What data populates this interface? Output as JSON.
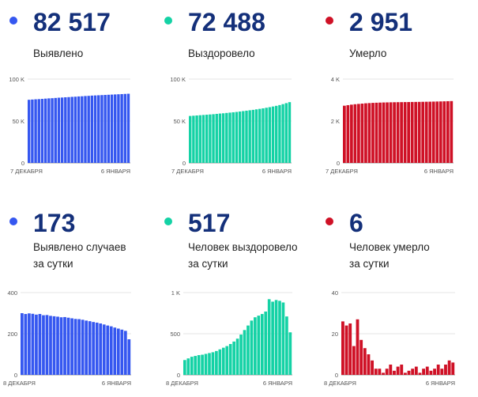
{
  "colors": {
    "blue": "#3557f0",
    "green": "#14d2a5",
    "red": "#cf1126",
    "number": "#14307a"
  },
  "panels": [
    {
      "number": "82 517",
      "label_lines": [
        "Выявлено"
      ],
      "color": "#3557f0"
    },
    {
      "number": "72 488",
      "label_lines": [
        "Выздоровело"
      ],
      "color": "#14d2a5"
    },
    {
      "number": "2 951",
      "label_lines": [
        "Умерло"
      ],
      "color": "#cf1126"
    },
    {
      "number": "173",
      "label_lines": [
        "Выявлено случаев",
        "за сутки"
      ],
      "color": "#3557f0"
    },
    {
      "number": "517",
      "label_lines": [
        "Человек выздоровело",
        "за сутки"
      ],
      "color": "#14d2a5"
    },
    {
      "number": "6",
      "label_lines": [
        "Человек умерло",
        "за сутки"
      ],
      "color": "#cf1126"
    }
  ],
  "chart_data": [
    {
      "type": "bar",
      "ylim": [
        0,
        100000
      ],
      "y_ticks": [
        0,
        50000,
        100000
      ],
      "y_tick_labels": [
        "0",
        "50 K",
        "100 K"
      ],
      "x_labels": [
        "7 ДЕКАБРЯ",
        "6 ЯНВАРЯ"
      ],
      "series": [
        {
          "values": [
            75300,
            75600,
            75900,
            76100,
            76400,
            76700,
            77000,
            77200,
            77500,
            77800,
            78000,
            78300,
            78500,
            78800,
            79000,
            79300,
            79500,
            79800,
            80000,
            80300,
            80500,
            80700,
            80900,
            81100,
            81300,
            81500,
            81700,
            81900,
            82100,
            82300,
            82517
          ]
        }
      ]
    },
    {
      "type": "bar",
      "ylim": [
        0,
        100000
      ],
      "y_ticks": [
        0,
        50000,
        100000
      ],
      "y_tick_labels": [
        "0",
        "50 K",
        "100 K"
      ],
      "x_labels": [
        "7 ДЕКАБРЯ",
        "6 ЯНВАРЯ"
      ],
      "series": [
        {
          "values": [
            56000,
            56300,
            56600,
            56900,
            57200,
            57500,
            57800,
            58100,
            58500,
            58900,
            59200,
            59600,
            60000,
            60400,
            60800,
            61300,
            61800,
            62300,
            62800,
            63300,
            63900,
            64500,
            65100,
            65800,
            66500,
            67300,
            68100,
            69000,
            70100,
            71300,
            72488
          ]
        }
      ]
    },
    {
      "type": "bar",
      "ylim": [
        0,
        4000
      ],
      "y_ticks": [
        0,
        2000,
        4000
      ],
      "y_tick_labels": [
        "0",
        "2 K",
        "4 K"
      ],
      "x_labels": [
        "7 ДЕКАБРЯ",
        "6 ЯНВАРЯ"
      ],
      "series": [
        {
          "values": [
            2730,
            2755,
            2780,
            2800,
            2815,
            2830,
            2845,
            2855,
            2865,
            2872,
            2878,
            2884,
            2888,
            2892,
            2895,
            2898,
            2900,
            2903,
            2905,
            2908,
            2910,
            2913,
            2916,
            2919,
            2922,
            2926,
            2930,
            2934,
            2939,
            2945,
            2951
          ]
        }
      ]
    },
    {
      "type": "bar",
      "ylim": [
        0,
        400
      ],
      "y_ticks": [
        0,
        200,
        400
      ],
      "y_tick_labels": [
        "0",
        "200",
        "400"
      ],
      "x_labels": [
        "8 ДЕКАБРЯ",
        "6 ЯНВАРЯ"
      ],
      "series": [
        {
          "values": [
            300,
            296,
            299,
            297,
            293,
            296,
            290,
            291,
            287,
            285,
            283,
            280,
            281,
            278,
            275,
            272,
            271,
            268,
            264,
            261,
            257,
            254,
            250,
            245,
            240,
            236,
            230,
            225,
            220,
            214,
            173
          ]
        }
      ]
    },
    {
      "type": "bar",
      "ylim": [
        0,
        1000
      ],
      "y_ticks": [
        0,
        500,
        1000
      ],
      "y_tick_labels": [
        "0",
        "500",
        "1 K"
      ],
      "x_labels": [
        "8 ДЕКАБРЯ",
        "6 ЯНВАРЯ"
      ],
      "series": [
        {
          "values": [
            180,
            200,
            220,
            230,
            240,
            245,
            255,
            265,
            275,
            290,
            310,
            330,
            350,
            375,
            405,
            440,
            490,
            545,
            600,
            660,
            700,
            720,
            740,
            770,
            920,
            890,
            910,
            900,
            880,
            710,
            517
          ]
        }
      ]
    },
    {
      "type": "bar",
      "ylim": [
        0,
        40
      ],
      "y_ticks": [
        0,
        20,
        40
      ],
      "y_tick_labels": [
        "0",
        "20",
        "40"
      ],
      "x_labels": [
        "8 ДЕКАБРЯ",
        "6 ЯНВАРЯ"
      ],
      "series": [
        {
          "values": [
            26,
            24,
            25,
            14,
            27,
            17,
            13,
            10,
            7,
            3,
            3,
            1,
            3,
            5,
            2,
            4,
            5,
            1,
            2,
            3,
            4,
            1,
            3,
            4,
            2,
            3,
            5,
            3,
            5,
            7,
            6
          ]
        }
      ]
    }
  ]
}
